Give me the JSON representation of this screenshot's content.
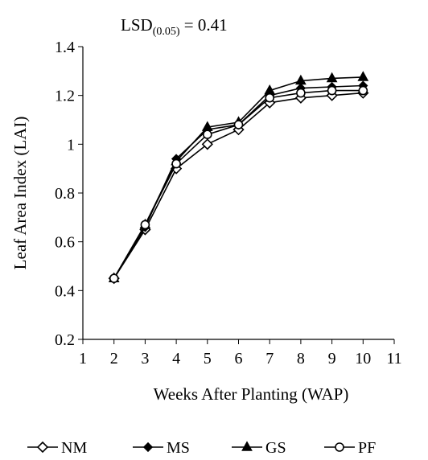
{
  "chart_data": {
    "type": "line",
    "annotation": {
      "prefix": "LSD",
      "subscript": "(0.05)",
      "suffix": " = 0.41"
    },
    "xlabel": "Weeks After Planting (WAP)",
    "ylabel": "Leaf Area Index (LAI)",
    "xlim": [
      1,
      11
    ],
    "ylim": [
      0.2,
      1.4
    ],
    "xticks": [
      1,
      2,
      3,
      4,
      5,
      6,
      7,
      8,
      9,
      10,
      11
    ],
    "yticks": [
      0.2,
      0.4,
      0.6,
      0.8,
      1,
      1.2,
      1.4
    ],
    "ytick_labels": [
      "0.2",
      "0.4",
      "0.6",
      "0.8",
      "1",
      "1.2",
      "1.4"
    ],
    "x": [
      2,
      3,
      4,
      5,
      6,
      7,
      8,
      9,
      10
    ],
    "series": [
      {
        "name": "NM",
        "marker": "diamond-open",
        "values": [
          0.45,
          0.65,
          0.9,
          1.0,
          1.06,
          1.17,
          1.19,
          1.2,
          1.21
        ]
      },
      {
        "name": "MS",
        "marker": "diamond-filled",
        "values": [
          0.45,
          0.66,
          0.94,
          1.06,
          1.08,
          1.2,
          1.23,
          1.235,
          1.24
        ]
      },
      {
        "name": "GS",
        "marker": "triangle-filled",
        "values": [
          0.45,
          0.67,
          0.93,
          1.07,
          1.09,
          1.22,
          1.26,
          1.27,
          1.275
        ]
      },
      {
        "name": "PF",
        "marker": "circle-open",
        "values": [
          0.45,
          0.67,
          0.92,
          1.04,
          1.08,
          1.19,
          1.21,
          1.22,
          1.22
        ]
      }
    ],
    "legend_position": "bottom",
    "grid": false,
    "colors": {
      "line": "#000000",
      "background": "#ffffff"
    }
  }
}
